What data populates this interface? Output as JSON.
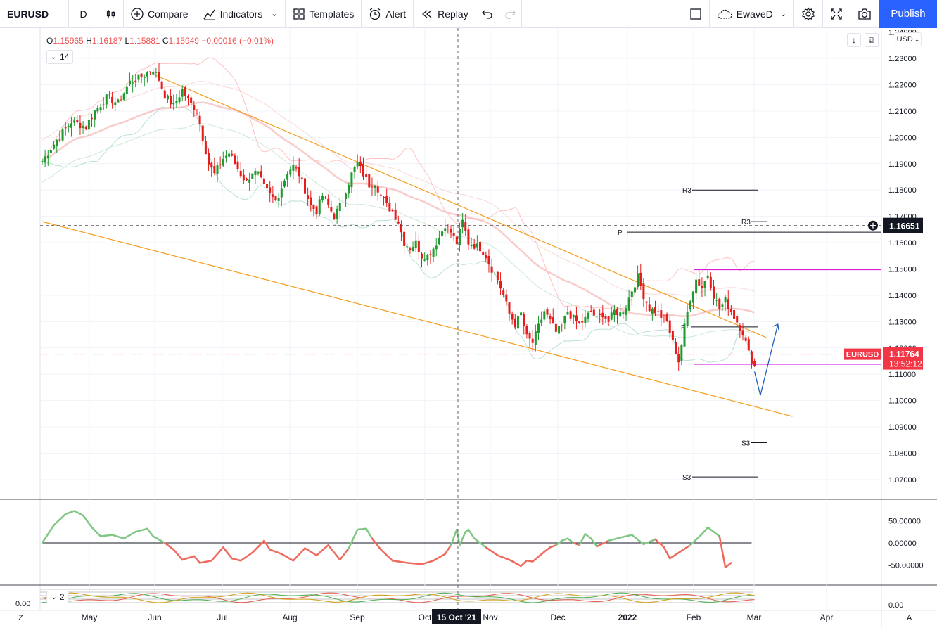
{
  "toolbar": {
    "symbol": "EURUSD",
    "interval": "D",
    "compare_label": "Compare",
    "indicators_label": "Indicators",
    "templates_label": "Templates",
    "alert_label": "Alert",
    "replay_label": "Replay",
    "layout_name": "EwaveD",
    "publish_label": "Publish"
  },
  "legend": {
    "o_key": "O",
    "o_val": "1.15965",
    "h_key": "H",
    "h_val": "1.16187",
    "l_key": "L",
    "l_val": "1.15881",
    "c_key": "C",
    "c_val": "1.15949",
    "change": "−0.00016 (−0.01%)",
    "collapse_count": "14",
    "collapse_count_2": "2"
  },
  "currency": "USD",
  "crosshair_date": "15 Oct '21",
  "crosshair_price": "1.16651",
  "last_price_label": "EURUSD",
  "last_price": "1.11764",
  "countdown": "13:52:12",
  "footer": {
    "left": "Z",
    "right": "A",
    "bottom_left_value": "0.00"
  },
  "colors": {
    "up": "#26a69a",
    "candle_up": "#1e9a2e",
    "candle_down": "#e81b1b",
    "trend": "#f59c1a",
    "accent": "#2962ff",
    "pivot_level": "#d500d5",
    "price_tag": "#f23645"
  },
  "chart_data": {
    "type": "candlestick",
    "symbol": "EURUSD",
    "interval": "D",
    "y_axis": {
      "ticks": [
        "1.24000",
        "1.23000",
        "1.22000",
        "1.21000",
        "1.20000",
        "1.19000",
        "1.18000",
        "1.17000",
        "1.16000",
        "1.15000",
        "1.14000",
        "1.13000",
        "1.12000",
        "1.11000",
        "1.10000",
        "1.09000",
        "1.08000",
        "1.07000"
      ],
      "range": [
        1.0625,
        1.2415
      ]
    },
    "x_axis": {
      "ticks": [
        "May",
        "Jun",
        "Jul",
        "Aug",
        "Sep",
        "Oct",
        "Nov",
        "Dec",
        "2022",
        "Feb",
        "Mar",
        "Apr"
      ]
    },
    "close_path": [
      [
        0,
        1.191
      ],
      [
        5,
        1.199
      ],
      [
        10,
        1.206
      ],
      [
        15,
        1.204
      ],
      [
        18,
        1.21
      ],
      [
        22,
        1.215
      ],
      [
        26,
        1.213
      ],
      [
        30,
        1.221
      ],
      [
        34,
        1.223
      ],
      [
        38,
        1.226
      ],
      [
        40,
        1.222
      ],
      [
        42,
        1.216
      ],
      [
        45,
        1.212
      ],
      [
        48,
        1.218
      ],
      [
        50,
        1.214
      ],
      [
        53,
        1.21
      ],
      [
        55,
        1.2
      ],
      [
        57,
        1.19
      ],
      [
        59,
        1.186
      ],
      [
        62,
        1.192
      ],
      [
        64,
        1.194
      ],
      [
        66,
        1.19
      ],
      [
        68,
        1.186
      ],
      [
        70,
        1.183
      ],
      [
        72,
        1.187
      ],
      [
        74,
        1.186
      ],
      [
        76,
        1.181
      ],
      [
        78,
        1.178
      ],
      [
        80,
        1.176
      ],
      [
        82,
        1.181
      ],
      [
        84,
        1.187
      ],
      [
        86,
        1.189
      ],
      [
        88,
        1.186
      ],
      [
        90,
        1.18
      ],
      [
        92,
        1.174
      ],
      [
        94,
        1.172
      ],
      [
        96,
        1.178
      ],
      [
        98,
        1.174
      ],
      [
        100,
        1.17
      ],
      [
        102,
        1.174
      ],
      [
        104,
        1.18
      ],
      [
        106,
        1.186
      ],
      [
        108,
        1.19
      ],
      [
        110,
        1.186
      ],
      [
        112,
        1.182
      ],
      [
        114,
        1.183
      ],
      [
        116,
        1.178
      ],
      [
        118,
        1.174
      ],
      [
        120,
        1.172
      ],
      [
        122,
        1.168
      ],
      [
        124,
        1.16
      ],
      [
        126,
        1.158
      ],
      [
        128,
        1.16
      ],
      [
        130,
        1.155
      ],
      [
        132,
        1.155
      ],
      [
        134,
        1.158
      ],
      [
        136,
        1.162
      ],
      [
        138,
        1.167
      ],
      [
        140,
        1.164
      ],
      [
        142,
        1.16
      ],
      [
        144,
        1.168
      ],
      [
        146,
        1.16
      ],
      [
        148,
        1.159
      ],
      [
        150,
        1.158
      ],
      [
        152,
        1.155
      ],
      [
        154,
        1.15
      ],
      [
        156,
        1.146
      ],
      [
        158,
        1.14
      ],
      [
        160,
        1.133
      ],
      [
        162,
        1.129
      ],
      [
        164,
        1.133
      ],
      [
        166,
        1.124
      ],
      [
        168,
        1.122
      ],
      [
        170,
        1.128
      ],
      [
        172,
        1.134
      ],
      [
        174,
        1.13
      ],
      [
        176,
        1.126
      ],
      [
        178,
        1.128
      ],
      [
        180,
        1.134
      ],
      [
        182,
        1.131
      ],
      [
        184,
        1.129
      ],
      [
        186,
        1.131
      ],
      [
        188,
        1.134
      ],
      [
        190,
        1.131
      ],
      [
        192,
        1.133
      ],
      [
        194,
        1.13
      ],
      [
        196,
        1.134
      ],
      [
        198,
        1.133
      ],
      [
        200,
        1.136
      ],
      [
        202,
        1.142
      ],
      [
        204,
        1.147
      ],
      [
        206,
        1.14
      ],
      [
        208,
        1.135
      ],
      [
        210,
        1.134
      ],
      [
        212,
        1.132
      ],
      [
        214,
        1.13
      ],
      [
        216,
        1.122
      ],
      [
        218,
        1.115
      ],
      [
        220,
        1.128
      ],
      [
        222,
        1.139
      ],
      [
        224,
        1.146
      ],
      [
        226,
        1.143
      ],
      [
        228,
        1.148
      ],
      [
        230,
        1.14
      ],
      [
        232,
        1.135
      ],
      [
        234,
        1.138
      ],
      [
        236,
        1.134
      ],
      [
        238,
        1.13
      ],
      [
        240,
        1.126
      ],
      [
        242,
        1.118
      ],
      [
        244,
        1.113
      ]
    ],
    "projection_arrow": [
      [
        244,
        1.111
      ],
      [
        246,
        1.102
      ],
      [
        252,
        1.129
      ]
    ],
    "trendlines": [
      {
        "name": "upper",
        "from": [
          38,
          1.224
        ],
        "to": [
          248,
          1.124
        ]
      },
      {
        "name": "lower",
        "from": [
          0,
          1.168
        ],
        "to": [
          257,
          1.094
        ]
      }
    ],
    "pivot_levels": [
      {
        "label": "R3",
        "value": 1.18
      },
      {
        "label": "R3",
        "value": 1.168
      },
      {
        "label": "P",
        "value": 1.164
      },
      {
        "label": "P",
        "value": 1.128
      },
      {
        "label": "S3",
        "value": 1.084
      },
      {
        "label": "S3",
        "value": 1.071
      }
    ],
    "oscillator": {
      "ticks": [
        "50.00000",
        "0.00000",
        "-50.00000"
      ],
      "range": [
        -95,
        95
      ],
      "values": [
        [
          0,
          0
        ],
        [
          4,
          40
        ],
        [
          8,
          65
        ],
        [
          11,
          72
        ],
        [
          14,
          62
        ],
        [
          17,
          35
        ],
        [
          20,
          15
        ],
        [
          24,
          18
        ],
        [
          28,
          10
        ],
        [
          32,
          25
        ],
        [
          36,
          32
        ],
        [
          38,
          15
        ],
        [
          42,
          0
        ],
        [
          45,
          -15
        ],
        [
          48,
          -38
        ],
        [
          52,
          -30
        ],
        [
          54,
          -45
        ],
        [
          58,
          -40
        ],
        [
          62,
          -10
        ],
        [
          65,
          -35
        ],
        [
          68,
          -40
        ],
        [
          72,
          -22
        ],
        [
          76,
          5
        ],
        [
          78,
          -15
        ],
        [
          82,
          -25
        ],
        [
          86,
          -40
        ],
        [
          90,
          -12
        ],
        [
          94,
          -28
        ],
        [
          98,
          -5
        ],
        [
          102,
          -38
        ],
        [
          105,
          -12
        ],
        [
          108,
          30
        ],
        [
          111,
          32
        ],
        [
          113,
          10
        ],
        [
          116,
          -15
        ],
        [
          120,
          -40
        ],
        [
          125,
          -45
        ],
        [
          130,
          -48
        ],
        [
          134,
          -40
        ],
        [
          138,
          -25
        ],
        [
          140,
          -5
        ],
        [
          142,
          30
        ],
        [
          143,
          -5
        ],
        [
          145,
          25
        ],
        [
          146,
          30
        ],
        [
          148,
          10
        ],
        [
          152,
          -10
        ],
        [
          156,
          -28
        ],
        [
          160,
          -38
        ],
        [
          164,
          -52
        ],
        [
          166,
          -40
        ],
        [
          168,
          -42
        ],
        [
          172,
          -20
        ],
        [
          174,
          -10
        ],
        [
          176,
          -5
        ],
        [
          178,
          5
        ],
        [
          180,
          10
        ],
        [
          182,
          0
        ],
        [
          184,
          -5
        ],
        [
          186,
          20
        ],
        [
          188,
          10
        ],
        [
          190,
          -8
        ],
        [
          194,
          5
        ],
        [
          198,
          12
        ],
        [
          202,
          18
        ],
        [
          206,
          -3
        ],
        [
          210,
          8
        ],
        [
          213,
          -10
        ],
        [
          215,
          -35
        ],
        [
          218,
          -22
        ],
        [
          222,
          -5
        ],
        [
          226,
          20
        ],
        [
          228,
          35
        ],
        [
          232,
          15
        ],
        [
          234,
          -55
        ],
        [
          236,
          -45
        ]
      ]
    },
    "sub_oscillator": {
      "ticks": [
        "0.00"
      ]
    }
  }
}
